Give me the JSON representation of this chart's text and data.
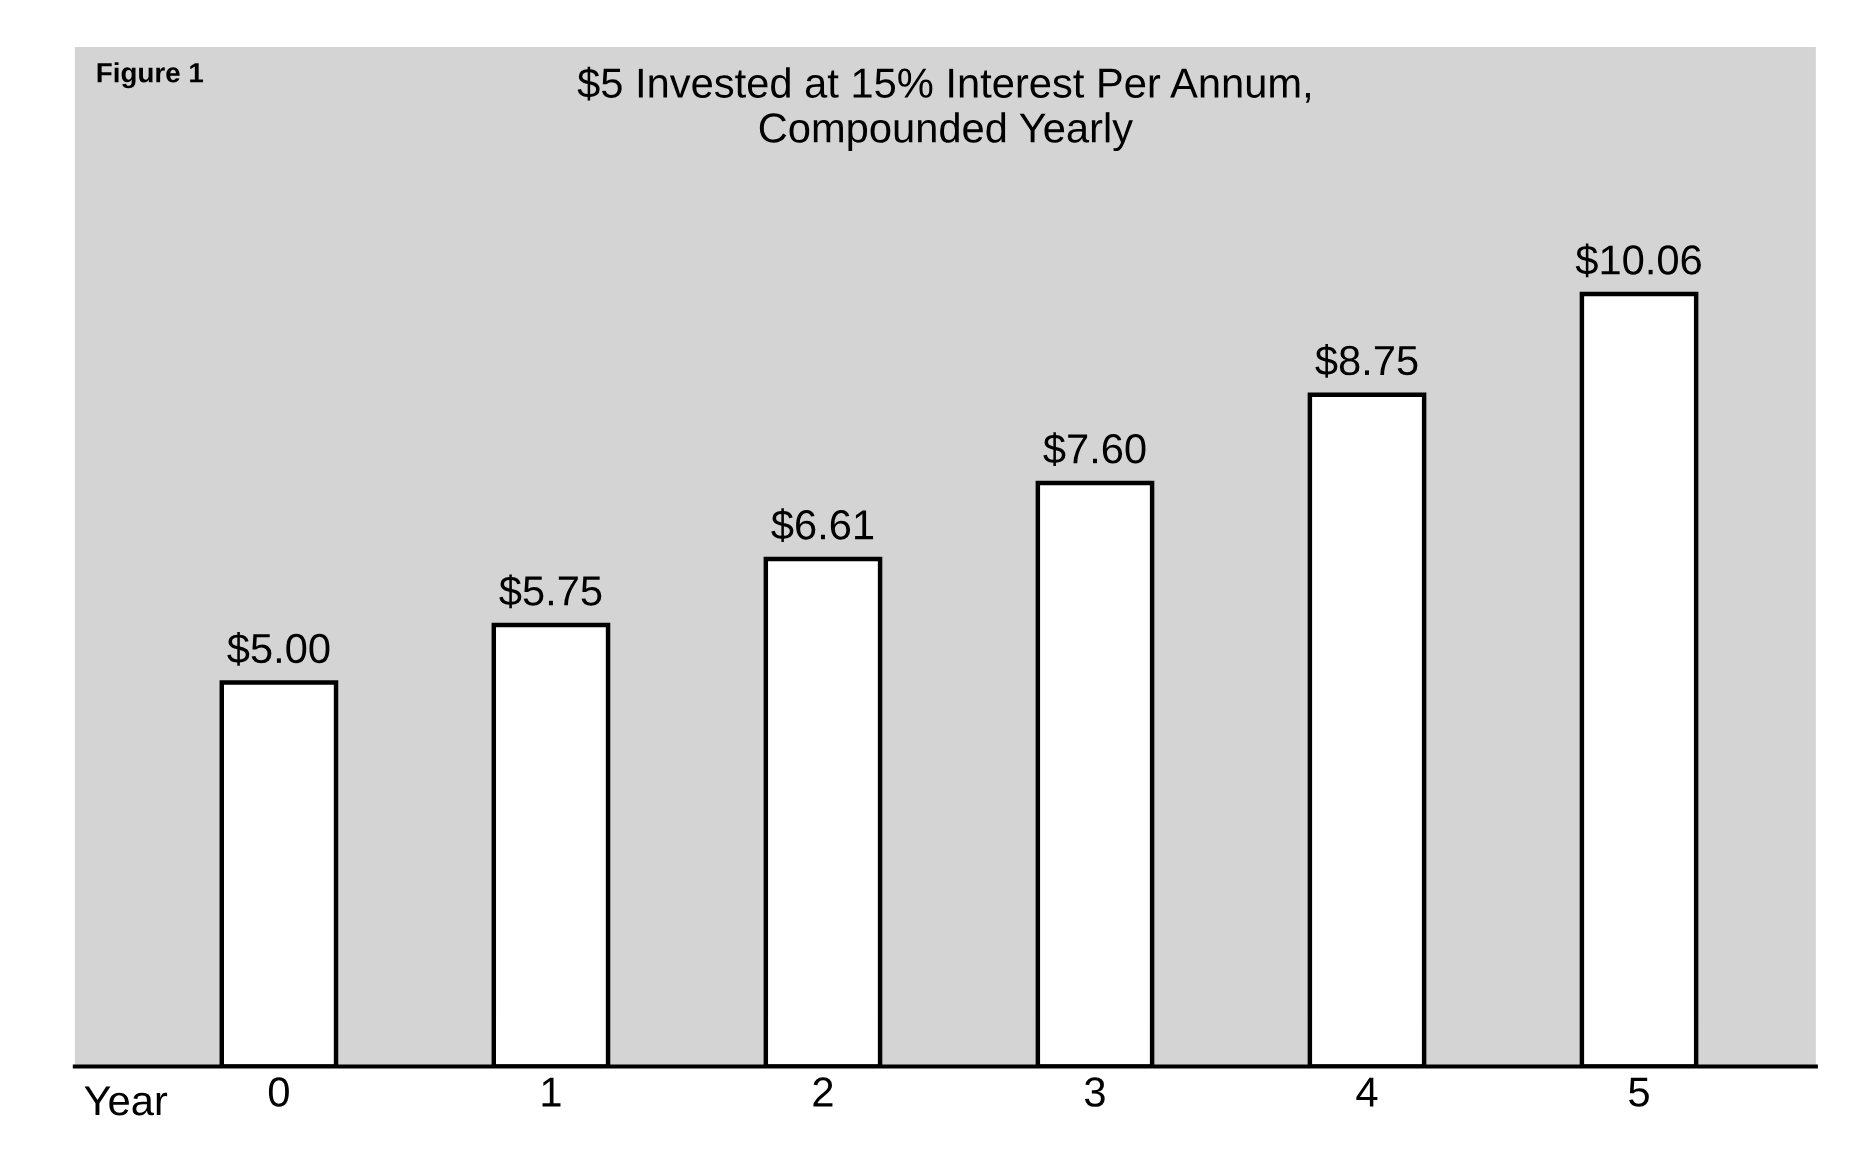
{
  "chart_data": {
    "type": "bar",
    "title": "$5 Invested at 15% Interest Per Annum,\nCompounded Yearly",
    "xlabel": "Year",
    "annotations": [
      "Figure 1"
    ],
    "categories": [
      "0",
      "1",
      "2",
      "3",
      "4",
      "5"
    ],
    "values": [
      5.0,
      5.75,
      6.61,
      7.6,
      8.75,
      10.06
    ],
    "value_labels": [
      "$5.00",
      "$5.75",
      "$6.61",
      "$7.60",
      "$8.75",
      "$10.06"
    ],
    "color": "#ffffff",
    "tick_labels": "x",
    "grid": false,
    "legend": false
  }
}
